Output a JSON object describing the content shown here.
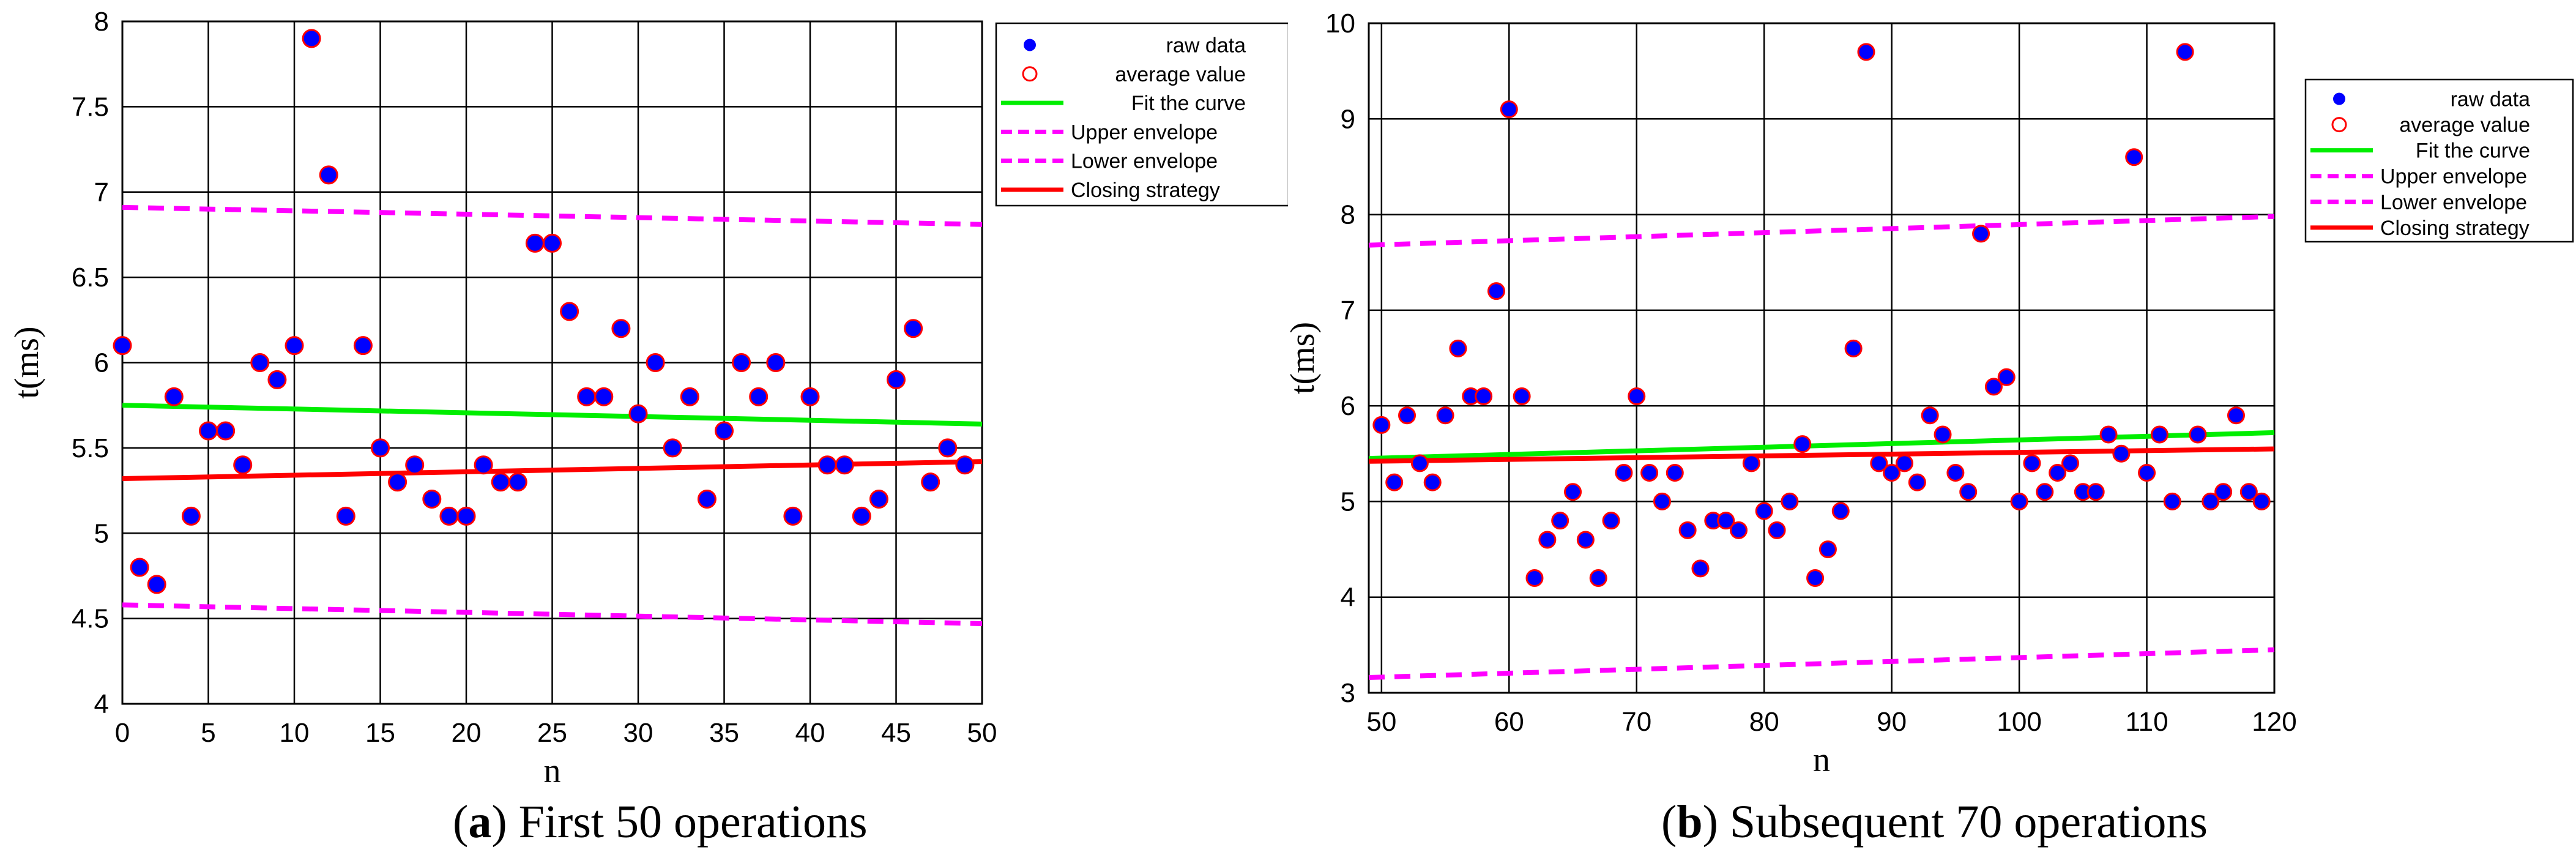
{
  "chart_data": [
    {
      "type": "scatter",
      "panel": "a",
      "caption_letter": "a",
      "caption_text": "First 50 operations",
      "xlabel": "n",
      "ylabel": "t(ms)",
      "xlim": [
        0,
        50
      ],
      "ylim": [
        4,
        8
      ],
      "xticks": [
        0,
        5,
        10,
        15,
        20,
        25,
        30,
        35,
        40,
        45,
        50
      ],
      "yticks": [
        4,
        4.5,
        5,
        5.5,
        6,
        6.5,
        7,
        7.5,
        8
      ],
      "grid": true,
      "legend_position": "top-right",
      "legend": [
        "raw data",
        "average value",
        "Fit the curve",
        "Upper envelope",
        "Lower envelope",
        "Closing strategy"
      ],
      "colors": {
        "raw": "#0000ff",
        "average": "#ff0000",
        "fit": "#00ee00",
        "envelope": "#ff00ff",
        "closing": "#ff0000"
      },
      "points": {
        "x": [
          0,
          1,
          2,
          3,
          4,
          5,
          6,
          7,
          8,
          9,
          10,
          11,
          12,
          13,
          14,
          15,
          16,
          17,
          18,
          19,
          20,
          21,
          22,
          23,
          24,
          25,
          26,
          27,
          28,
          29,
          30,
          31,
          32,
          33,
          34,
          35,
          36,
          37,
          38,
          39,
          40,
          41,
          42,
          43,
          44,
          45,
          46,
          47,
          48,
          49
        ],
        "y": [
          6.1,
          4.8,
          4.7,
          5.8,
          5.1,
          5.6,
          5.6,
          5.4,
          6.0,
          5.9,
          6.1,
          7.9,
          7.1,
          5.1,
          6.1,
          5.5,
          5.3,
          5.4,
          5.2,
          5.1,
          5.1,
          5.4,
          5.3,
          5.3,
          6.7,
          6.7,
          6.3,
          5.8,
          5.8,
          6.2,
          5.7,
          6.0,
          5.5,
          5.8,
          5.2,
          5.6,
          6.0,
          5.8,
          6.0,
          5.1,
          5.8,
          5.4,
          5.4,
          5.1,
          5.2,
          5.9,
          6.2,
          5.3,
          5.5,
          5.4
        ]
      },
      "lines": {
        "fit": {
          "x": [
            0,
            50
          ],
          "y": [
            5.75,
            5.64
          ]
        },
        "upper": {
          "x": [
            0,
            50
          ],
          "y": [
            6.91,
            6.81
          ]
        },
        "lower": {
          "x": [
            0,
            50
          ],
          "y": [
            4.58,
            4.47
          ]
        },
        "closing": {
          "x": [
            0,
            50
          ],
          "y": [
            5.32,
            5.42
          ]
        }
      }
    },
    {
      "type": "scatter",
      "panel": "b",
      "caption_letter": "b",
      "caption_text": "Subsequent 70 operations",
      "xlabel": "n",
      "ylabel": "t(ms)",
      "xlim": [
        49,
        120
      ],
      "ylim": [
        3,
        10
      ],
      "xticks": [
        50,
        60,
        70,
        80,
        90,
        100,
        110,
        120
      ],
      "yticks": [
        3,
        4,
        5,
        6,
        7,
        8,
        9,
        10
      ],
      "grid": true,
      "legend_position": "top-right",
      "legend": [
        "raw data",
        "average value",
        "Fit the curve",
        "Upper envelope",
        "Lower envelope",
        "Closing strategy"
      ],
      "colors": {
        "raw": "#0000ff",
        "average": "#ff0000",
        "fit": "#00ee00",
        "envelope": "#ff00ff",
        "closing": "#ff0000"
      },
      "points": {
        "x": [
          50,
          51,
          52,
          53,
          54,
          55,
          56,
          57,
          58,
          59,
          60,
          61,
          62,
          63,
          64,
          65,
          66,
          67,
          68,
          69,
          70,
          71,
          72,
          73,
          74,
          75,
          76,
          77,
          78,
          79,
          80,
          81,
          82,
          83,
          84,
          85,
          86,
          87,
          88,
          89,
          90,
          91,
          92,
          93,
          94,
          95,
          96,
          97,
          98,
          99,
          100,
          101,
          102,
          103,
          104,
          105,
          106,
          107,
          108,
          109,
          110,
          111,
          112,
          113,
          114,
          115,
          116,
          117,
          118,
          119
        ],
        "y": [
          5.8,
          5.2,
          5.9,
          5.4,
          5.2,
          5.9,
          6.6,
          6.1,
          6.1,
          7.2,
          9.1,
          6.1,
          4.2,
          4.6,
          4.8,
          5.1,
          4.6,
          4.2,
          4.8,
          5.3,
          6.1,
          5.3,
          5.0,
          5.3,
          4.7,
          4.3,
          4.8,
          4.8,
          4.7,
          5.4,
          4.9,
          4.7,
          5.0,
          5.6,
          4.2,
          4.5,
          4.9,
          6.6,
          9.7,
          5.4,
          5.3,
          5.4,
          5.2,
          5.9,
          5.7,
          5.3,
          5.1,
          7.8,
          6.2,
          6.3,
          5.0,
          5.4,
          5.1,
          5.3,
          5.4,
          5.1,
          5.1,
          5.7,
          5.5,
          8.6,
          5.3,
          5.7,
          5.0,
          9.7,
          5.7,
          5.0,
          5.1,
          5.9,
          5.1,
          5.0
        ]
      },
      "lines": {
        "fit": {
          "x": [
            49,
            120
          ],
          "y": [
            5.45,
            5.72
          ]
        },
        "upper": {
          "x": [
            49,
            120
          ],
          "y": [
            7.68,
            7.98
          ]
        },
        "lower": {
          "x": [
            49,
            120
          ],
          "y": [
            3.16,
            3.45
          ]
        },
        "closing": {
          "x": [
            49,
            120
          ],
          "y": [
            5.42,
            5.55
          ]
        }
      }
    }
  ]
}
